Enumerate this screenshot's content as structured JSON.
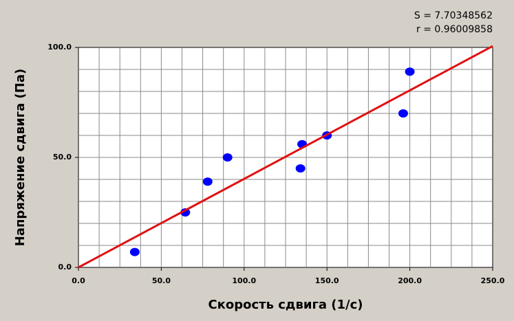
{
  "chart_data": {
    "type": "scatter",
    "xlabel": "Скорость сдвига (1/с)",
    "ylabel": "Напряжение сдвига (Па)",
    "annotations": [
      "S = 7.70348562",
      "r = 0.96009858"
    ],
    "xlim": [
      0,
      250
    ],
    "ylim": [
      0,
      100
    ],
    "xticks": [
      {
        "value": 0,
        "label": "0.0"
      },
      {
        "value": 50,
        "label": "50.0"
      },
      {
        "value": 100,
        "label": "100.0"
      },
      {
        "value": 150,
        "label": "150.0"
      },
      {
        "value": 200,
        "label": "200.0"
      },
      {
        "value": 250,
        "label": "250.0"
      }
    ],
    "yticks": [
      {
        "value": 0,
        "label": "0.0"
      },
      {
        "value": 50,
        "label": "50.0"
      },
      {
        "value": 100,
        "label": "100.0"
      }
    ],
    "xgrid": [
      12.5,
      25,
      37.5,
      50,
      62.5,
      75,
      87.5,
      100,
      112.5,
      125,
      137.5,
      150,
      162.5,
      175,
      187.5,
      200,
      212.5,
      225,
      237.5
    ],
    "ygrid": [
      10,
      20,
      30,
      40,
      50,
      60,
      70,
      80,
      90
    ],
    "grid": true,
    "series": [
      {
        "color": "#0000ff",
        "x": [
          34,
          64.5,
          78,
          90,
          134,
          135,
          150,
          196,
          200
        ],
        "values": [
          7,
          25,
          39,
          50,
          45,
          56,
          60,
          70,
          89
        ]
      },
      {
        "type": "line",
        "color": "#e01010",
        "x": [
          0,
          250
        ],
        "values": [
          0,
          100.6
        ]
      }
    ]
  }
}
